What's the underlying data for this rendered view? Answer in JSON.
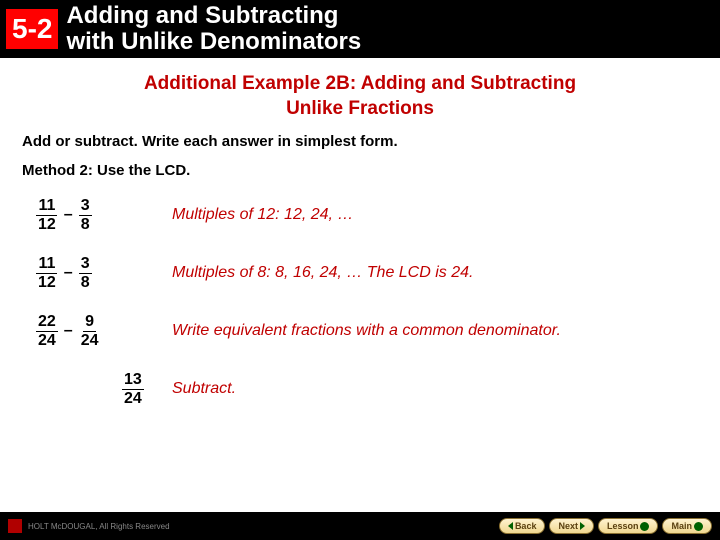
{
  "header": {
    "lesson_number": "5-2",
    "title_line1": "Adding and Subtracting",
    "title_line2": "with Unlike Denominators"
  },
  "example_title_line1": "Additional Example 2B: Adding and Subtracting",
  "example_title_line2": "Unlike Fractions",
  "instruction": "Add or subtract. Write each answer in simplest form.",
  "method": "Method 2: Use the LCD.",
  "steps": [
    {
      "n1": "11",
      "d1": "12",
      "op": "–",
      "n2": "3",
      "d2": "8"
    },
    {
      "n1": "11",
      "d1": "12",
      "op": "–",
      "n2": "3",
      "d2": "8"
    },
    {
      "n1": "22",
      "d1": "24",
      "op": "–",
      "n2": "9",
      "d2": "24"
    }
  ],
  "result": {
    "n": "13",
    "d": "24"
  },
  "explanations": [
    "Multiples of 12: 12, 24, …",
    "Multiples of 8: 8, 16, 24, … The LCD is 24.",
    "Write equivalent fractions with a common denominator.",
    "Subtract."
  ],
  "footer": {
    "copyright": "HOLT McDOUGAL, All Rights Reserved",
    "nav": {
      "back": "Back",
      "next": "Next",
      "lesson": "Lesson",
      "main": "Main"
    }
  },
  "colors": {
    "accent_red": "#c00000",
    "badge_red": "#ff0000",
    "header_bg": "#000000",
    "btn_border": "#8a7030",
    "btn_text": "#5a4010",
    "tri_green": "#006000"
  }
}
